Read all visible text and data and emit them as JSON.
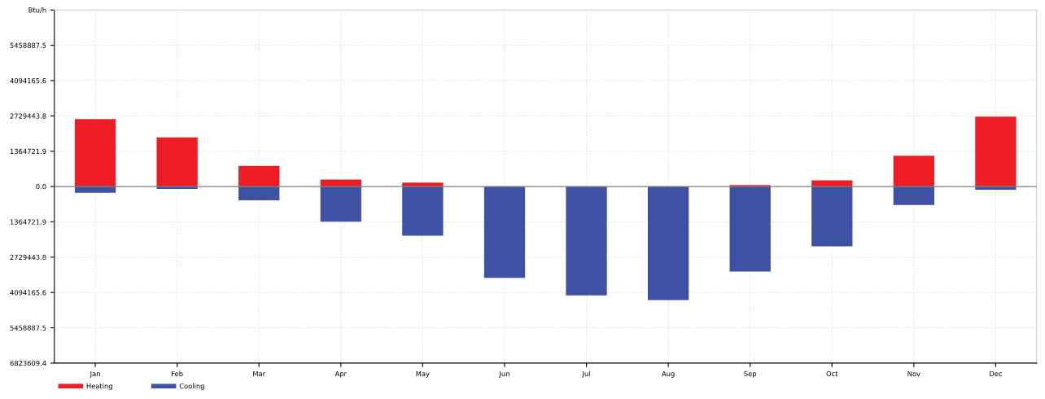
{
  "chart_data": {
    "type": "bar",
    "categories": [
      "Jan",
      "Feb",
      "Mar",
      "Apr",
      "May",
      "Jun",
      "Jul",
      "Aug",
      "Sep",
      "Oct",
      "Nov",
      "Dec"
    ],
    "series": [
      {
        "name": "Heating",
        "color": "#ee1c25",
        "values": [
          2610000,
          1900000,
          800000,
          270000,
          150000,
          0,
          0,
          0,
          60000,
          240000,
          1190000,
          2700000
        ]
      },
      {
        "name": "Cooling",
        "color": "#3f51a3",
        "values": [
          -240000,
          -90000,
          -530000,
          -1360000,
          -1900000,
          -3530000,
          -4210000,
          -4390000,
          -3290000,
          -2310000,
          -710000,
          -120000
        ]
      }
    ],
    "ylim": [
      -6823609.4,
      6823609.4
    ],
    "yticks": [
      {
        "value": -6823609.4,
        "label": "6823609.4"
      },
      {
        "value": -5458887.5,
        "label": "5458887.5"
      },
      {
        "value": -4094165.6,
        "label": "4094165.6"
      },
      {
        "value": -2729443.8,
        "label": "2729443.8"
      },
      {
        "value": -1364721.9,
        "label": "1364721.9"
      },
      {
        "value": 0,
        "label": "0.0"
      },
      {
        "value": 1364721.9,
        "label": "1364721.9"
      },
      {
        "value": 2729443.8,
        "label": "2729443.8"
      },
      {
        "value": 4094165.6,
        "label": "4094165.6"
      },
      {
        "value": 5458887.5,
        "label": "5458887.5"
      },
      {
        "value": 6823609.4,
        "label": "Btu/h"
      }
    ],
    "ref_lines": [
      {
        "axis": "y",
        "value": 0,
        "color": "#808080"
      }
    ],
    "grid": true,
    "stacked": true,
    "legend": "bottom"
  }
}
